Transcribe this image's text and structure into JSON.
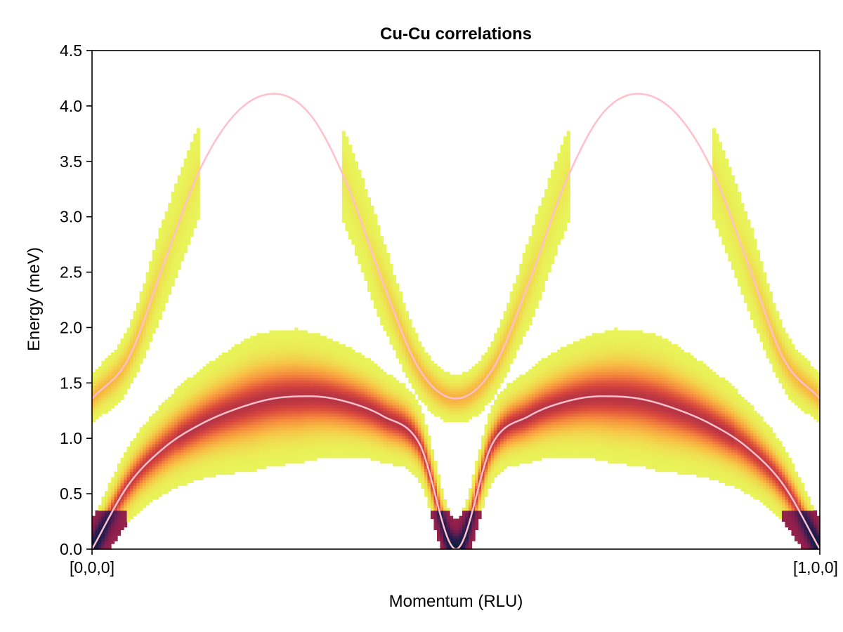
{
  "chart_data": {
    "type": "heatmap",
    "title": "Cu-Cu correlations",
    "xlabel": "Momentum (RLU)",
    "ylabel": "Energy (meV)",
    "x_tick_labels": [
      "[0,0,0]",
      "[1,0,0]"
    ],
    "x_range": [
      0,
      1
    ],
    "ylim": [
      0,
      4.5
    ],
    "y_ticks": [
      0.0,
      0.5,
      1.0,
      1.5,
      2.0,
      2.5,
      3.0,
      3.5,
      4.0,
      4.5
    ],
    "y_tick_labels": [
      "0.0",
      "0.5",
      "1.0",
      "1.5",
      "2.0",
      "2.5",
      "3.0",
      "3.5",
      "4.0",
      "4.5"
    ],
    "grid": false,
    "colormap": [
      "#e8f55a",
      "#f7c245",
      "#f58a3c",
      "#d9473c",
      "#8c1e4d",
      "#2a1d52",
      "#0b1e3a"
    ],
    "dispersion_color": "#ffbfcb",
    "series": [
      {
        "x": [
          0.0,
          0.05,
          0.1,
          0.15,
          0.2,
          0.25,
          0.3,
          0.35,
          0.4,
          0.45,
          0.5,
          0.55,
          0.6,
          0.65,
          0.7,
          0.75,
          0.8,
          0.85,
          0.9,
          0.95,
          1.0
        ],
        "values": [
          0.0,
          0.58,
          0.92,
          1.13,
          1.27,
          1.36,
          1.38,
          1.33,
          1.2,
          0.95,
          0.0,
          0.95,
          1.2,
          1.33,
          1.38,
          1.36,
          1.27,
          1.13,
          0.92,
          0.58,
          0.0
        ]
      },
      {
        "x": [
          0.0,
          0.05,
          0.1,
          0.15,
          0.2,
          0.25,
          0.3,
          0.35,
          0.4,
          0.45,
          0.5,
          0.55,
          0.6,
          0.65,
          0.7,
          0.75,
          0.8,
          0.85,
          0.9,
          0.95,
          1.0
        ],
        "values": [
          1.36,
          1.72,
          2.6,
          3.45,
          3.95,
          4.11,
          3.92,
          3.3,
          2.4,
          1.62,
          1.36,
          1.62,
          2.4,
          3.3,
          3.92,
          4.11,
          3.95,
          3.45,
          2.6,
          1.72,
          1.36
        ]
      }
    ]
  }
}
